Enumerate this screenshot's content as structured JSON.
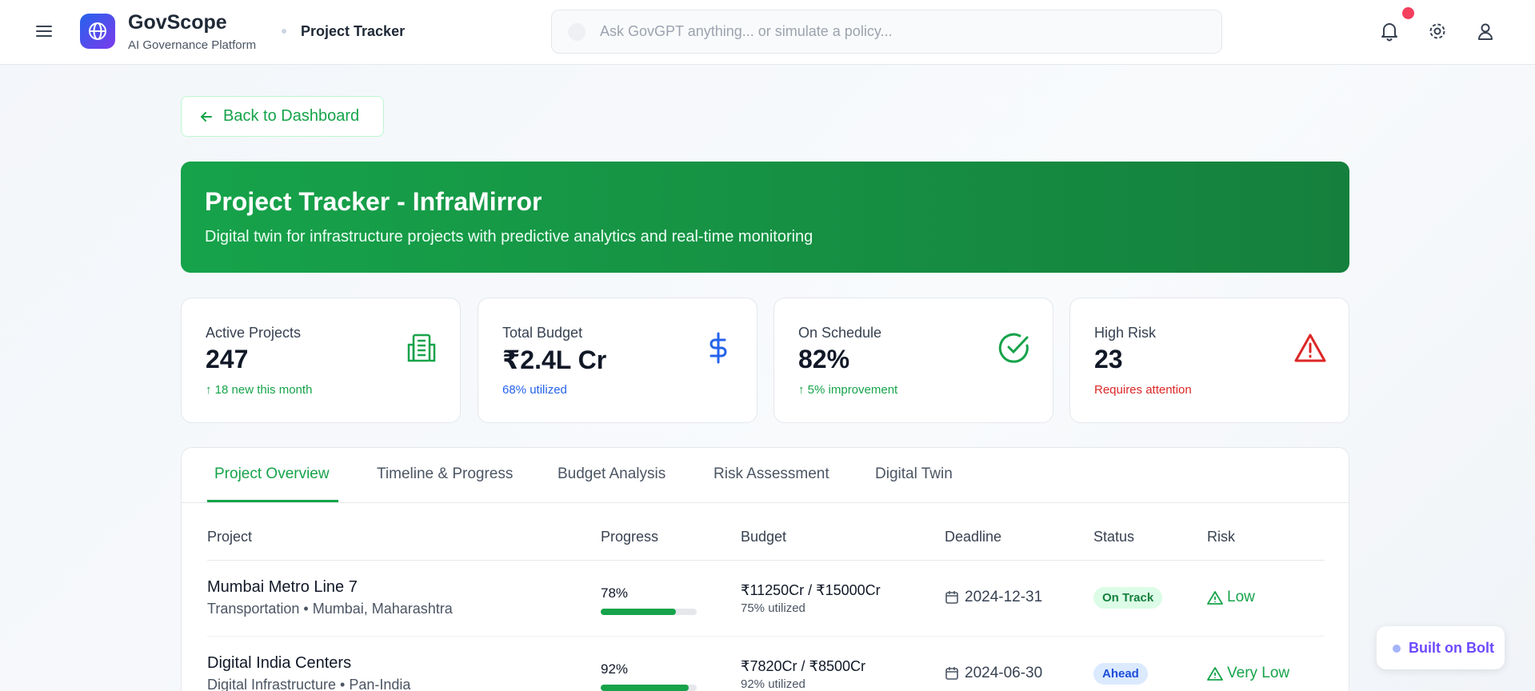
{
  "header": {
    "app_name": "GovScope",
    "app_tagline": "AI Governance Platform",
    "breadcrumb": "Project Tracker",
    "search_placeholder": "Ask GovGPT anything... or simulate a policy..."
  },
  "back_button": "Back to Dashboard",
  "banner": {
    "title": "Project Tracker - InfraMirror",
    "subtitle": "Digital twin for infrastructure projects with predictive analytics and real-time monitoring"
  },
  "stats": [
    {
      "label": "Active Projects",
      "value": "247",
      "note": "18 new this month"
    },
    {
      "label": "Total Budget",
      "value": "₹2.4L Cr",
      "note": "68% utilized"
    },
    {
      "label": "On Schedule",
      "value": "82%",
      "note": "5% improvement"
    },
    {
      "label": "High Risk",
      "value": "23",
      "note": "Requires attention"
    }
  ],
  "tabs": [
    "Project Overview",
    "Timeline & Progress",
    "Budget Analysis",
    "Risk Assessment",
    "Digital Twin"
  ],
  "table": {
    "columns": [
      "Project",
      "Progress",
      "Budget",
      "Deadline",
      "Status",
      "Risk"
    ],
    "rows": [
      {
        "name": "Mumbai Metro Line 7",
        "meta": "Transportation • Mumbai, Maharashtra",
        "progress": {
          "value": 78,
          "label": "78%"
        },
        "budget": "₹11250Cr / ₹15000Cr",
        "utilized": "75% utilized",
        "deadline": "2024-12-31",
        "status": "On Track",
        "risk": "Low"
      },
      {
        "name": "Digital India Centers",
        "meta": "Digital Infrastructure • Pan-India",
        "progress": {
          "value": 92,
          "label": "92%"
        },
        "budget": "₹7820Cr / ₹8500Cr",
        "utilized": "92% utilized",
        "deadline": "2024-06-30",
        "status": "Ahead",
        "risk": "Very Low"
      }
    ]
  },
  "badge": "Built on Bolt"
}
